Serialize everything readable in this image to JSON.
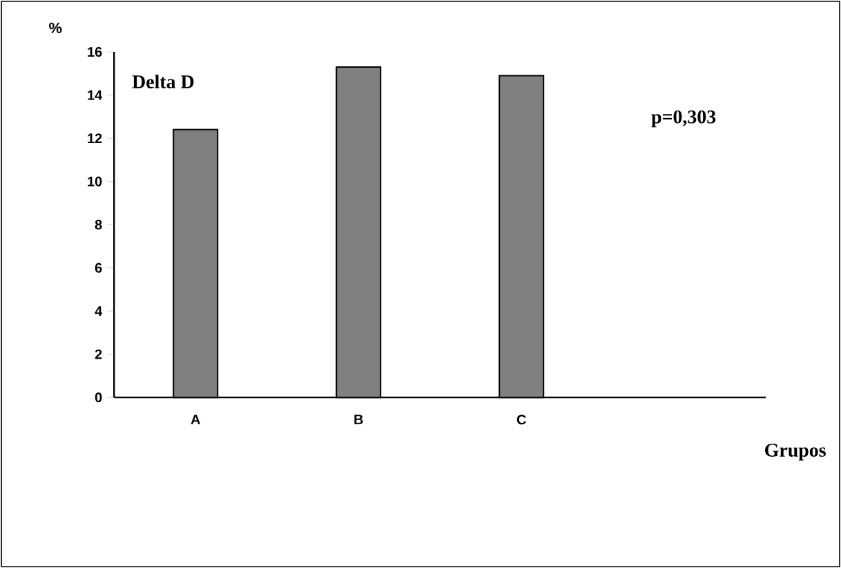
{
  "chart_data": {
    "type": "bar",
    "title": "Delta D",
    "ylabel": "%",
    "xlabel": "Grupos",
    "categories": [
      "A",
      "B",
      "C",
      null
    ],
    "values": [
      12.4,
      15.3,
      14.9,
      null
    ],
    "color": "#808080",
    "ylim": [
      0,
      16
    ],
    "yticks": [
      0,
      2,
      4,
      6,
      8,
      10,
      12,
      14,
      16
    ],
    "annotations": [
      "p=0,303"
    ]
  }
}
